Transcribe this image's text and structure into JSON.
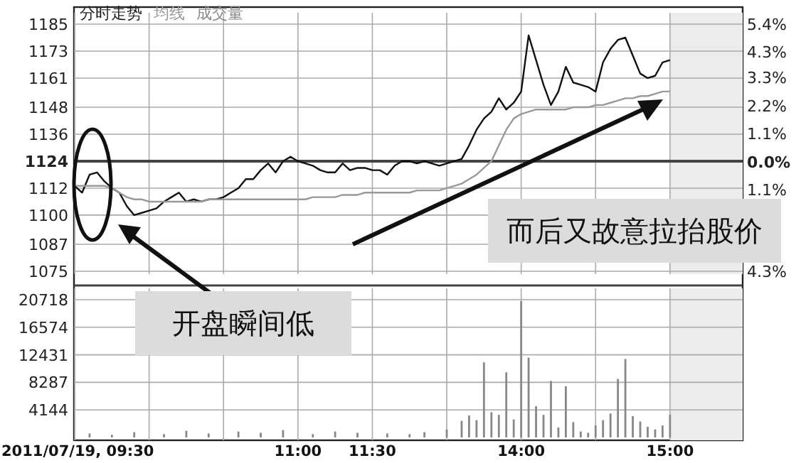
{
  "chart_data": [
    {
      "type": "line",
      "title": "分时走势",
      "legend": "top left",
      "grid": true,
      "tick_labels": "y",
      "categories": [
        null,
        null,
        null,
        null,
        null,
        null,
        null,
        null,
        null,
        null,
        null,
        null,
        null,
        null,
        null,
        null,
        null,
        null,
        null,
        null,
        null,
        null,
        null,
        null,
        null,
        null,
        null,
        null,
        null,
        null,
        null,
        null,
        null,
        null,
        null,
        null,
        null,
        null,
        null,
        null,
        null,
        null,
        null,
        null,
        null,
        null,
        null,
        null,
        null,
        null,
        null,
        null,
        null,
        null,
        null,
        null,
        null,
        null,
        null,
        null,
        null,
        null,
        null,
        null,
        null,
        null,
        null,
        null,
        null,
        null,
        null,
        null,
        null,
        null,
        null,
        null,
        null,
        null,
        null,
        null,
        null,
        null,
        null,
        null,
        null,
        null,
        null,
        null,
        null,
        null
      ],
      "ylim": [
        1075,
        1185
      ],
      "yticks": [
        1075,
        1087,
        1100,
        1112,
        1124,
        1136,
        1148,
        1161,
        1173,
        1185
      ],
      "y2lim": [
        -4.3,
        5.4
      ],
      "y2ticks": [
        {
          "value": 5.4,
          "label": "5.4%"
        },
        {
          "value": 4.3,
          "label": "4.3%"
        },
        {
          "value": 3.3,
          "label": "3.3%"
        },
        {
          "value": 2.2,
          "label": "2.2%"
        },
        {
          "value": 1.1,
          "label": "1.1%"
        },
        {
          "value": 0,
          "label": "0.0%"
        },
        {
          "value": -1.1,
          "label": "1.1%"
        },
        {
          "value": -4.3,
          "label": "4.3%"
        }
      ],
      "ref_lines": [
        {
          "axis": "y",
          "value": 1124,
          "color": "#444444"
        }
      ],
      "annotations": [
        "而后又故意拉抬股价",
        "开盘瞬间低"
      ],
      "series": [
        {
          "color": "#111111",
          "values": [
            1113,
            1110,
            1118,
            1119,
            1115,
            1112,
            1110,
            1104,
            1100,
            1101,
            1102,
            1103,
            1106,
            1108,
            1110,
            1106,
            1107,
            1106,
            1107,
            1107,
            1108,
            1110,
            1112,
            1116,
            1116,
            1120,
            1123,
            1119,
            1124,
            1126,
            1124,
            1123,
            1122,
            1120,
            1119,
            1119,
            1123,
            1120,
            1121,
            1121,
            1120,
            1120,
            1118,
            1122,
            1124,
            1124,
            1123,
            1124,
            1123,
            1122,
            1123,
            1124,
            1125,
            1131,
            1138,
            1143,
            1146,
            1152,
            1147,
            1150,
            1155,
            1180,
            1169,
            1158,
            1149,
            1155,
            1166,
            1159,
            1158,
            1157,
            1155,
            1168,
            1174,
            1178,
            1179,
            1171,
            1163,
            1161,
            1162,
            1168,
            1169,
            null,
            null,
            null,
            null,
            null,
            null,
            null,
            null,
            null
          ]
        },
        {
          "name": "均线",
          "color": "#999999",
          "values": [
            1113,
            1113,
            1113,
            1113,
            1113,
            1112,
            1110,
            1108,
            1107,
            1107,
            1106,
            1106,
            1106,
            1106,
            1106,
            1106,
            1106,
            1106,
            1107,
            1107,
            1107,
            1107,
            1107,
            1107,
            1107,
            1107,
            1107,
            1107,
            1107,
            1107,
            1107,
            1107,
            1108,
            1108,
            1108,
            1108,
            1109,
            1109,
            1109,
            1110,
            1110,
            1110,
            1110,
            1110,
            1110,
            1110,
            1111,
            1111,
            1111,
            1111,
            1112,
            1113,
            1114,
            1116,
            1118,
            1121,
            1124,
            1131,
            1138,
            1143,
            1145,
            1146,
            1147,
            1147,
            1147,
            1147,
            1147,
            1148,
            1148,
            1148,
            1149,
            1149,
            1150,
            1151,
            1152,
            1152,
            1153,
            1153,
            1154,
            1155,
            1155,
            null,
            null,
            null,
            null,
            null,
            null,
            null,
            null,
            null
          ]
        }
      ]
    },
    {
      "type": "bar",
      "grid": true,
      "categories": [
        "2011/07/19, 09:30",
        null,
        null,
        null,
        null,
        null,
        null,
        null,
        null,
        null,
        null,
        null,
        null,
        null,
        null,
        null,
        null,
        null,
        null,
        null,
        null,
        null,
        null,
        null,
        null,
        null,
        null,
        null,
        null,
        null,
        "11:00",
        null,
        null,
        null,
        null,
        null,
        null,
        null,
        null,
        null,
        "11:30",
        null,
        null,
        null,
        null,
        null,
        null,
        null,
        null,
        null,
        null,
        null,
        null,
        null,
        null,
        null,
        null,
        null,
        null,
        null,
        "14:00",
        null,
        null,
        null,
        null,
        null,
        null,
        null,
        null,
        null,
        null,
        null,
        null,
        null,
        null,
        null,
        null,
        null,
        null,
        null,
        "15:00",
        null,
        null,
        null,
        null,
        null,
        null,
        null,
        null,
        null
      ],
      "ylim": [
        0,
        20718
      ],
      "yticks": [
        4144,
        8287,
        12431,
        16574,
        20718
      ],
      "series": [
        {
          "name": "成交量",
          "color": "#888888",
          "values": [
            null,
            null,
            600,
            null,
            null,
            400,
            null,
            null,
            800,
            null,
            null,
            null,
            500,
            null,
            null,
            1000,
            null,
            null,
            600,
            null,
            null,
            null,
            900,
            null,
            null,
            700,
            null,
            null,
            1100,
            null,
            null,
            null,
            500,
            null,
            null,
            900,
            null,
            null,
            700,
            null,
            null,
            null,
            600,
            null,
            null,
            500,
            null,
            800,
            null,
            null,
            1200,
            null,
            2500,
            3300,
            2600,
            11300,
            3800,
            3400,
            9800,
            2700,
            20500,
            12000,
            4700,
            3400,
            8500,
            1500,
            7700,
            2300,
            900,
            700,
            1800,
            2600,
            3600,
            8800,
            11800,
            3200,
            2400,
            1600,
            1200,
            1800,
            3400,
            null,
            null,
            null,
            null,
            null,
            null,
            null,
            null,
            null
          ]
        }
      ]
    }
  ]
}
